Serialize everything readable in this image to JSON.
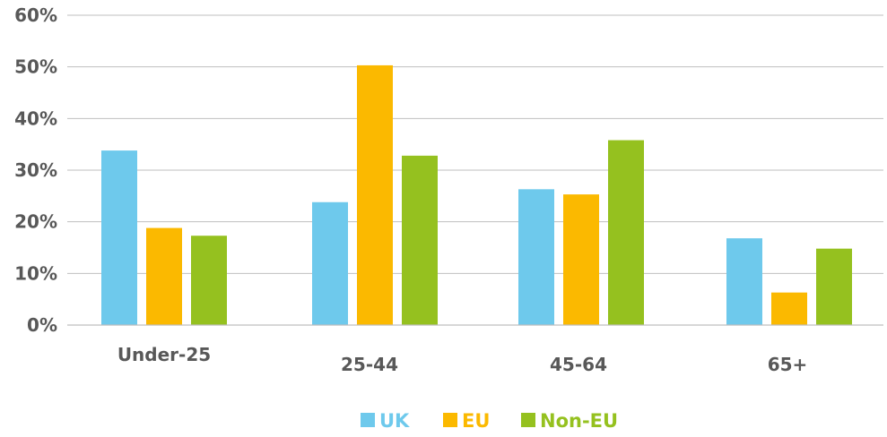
{
  "chart_data": {
    "type": "bar",
    "categories": [
      "Under-25",
      "25-44",
      "45-64",
      "65+"
    ],
    "series": [
      {
        "name": "UK",
        "color": "#6ec9ec",
        "values": [
          33.8,
          23.8,
          26.3,
          16.8
        ]
      },
      {
        "name": "EU",
        "color": "#fbb900",
        "values": [
          18.8,
          50.3,
          25.3,
          6.3
        ]
      },
      {
        "name": "Non-EU",
        "color": "#95c11f",
        "values": [
          17.3,
          32.8,
          35.8,
          14.8
        ]
      }
    ],
    "ylim": [
      0,
      60
    ],
    "yticks": [
      "0%",
      "10%",
      "20%",
      "30%",
      "40%",
      "50%",
      "60%"
    ],
    "title": "",
    "xlabel": "",
    "ylabel": "",
    "grid": true,
    "legend_position": "bottom-center",
    "colors": {
      "grid": "#bfbfbf",
      "axis": "#bfbfbf",
      "label": "#585858"
    }
  }
}
